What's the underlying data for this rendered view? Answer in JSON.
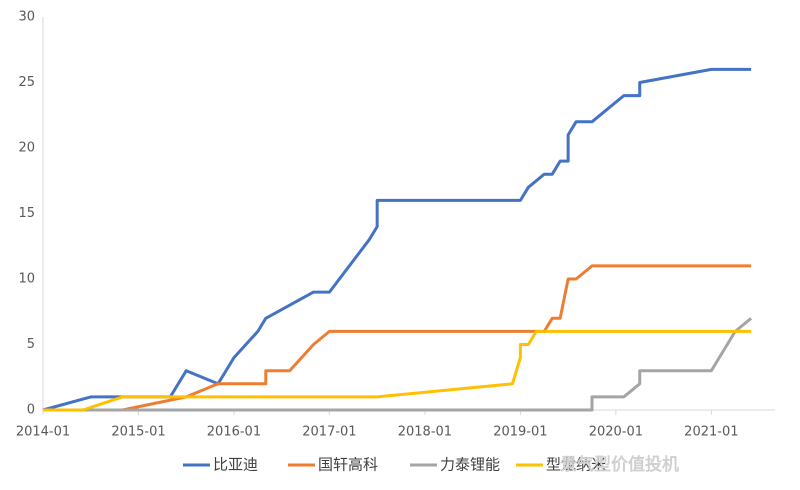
{
  "chart_data": {
    "type": "line",
    "xlim": [
      "2014-01",
      "2021-09"
    ],
    "xticks": [
      "2014-01",
      "2015-01",
      "2016-01",
      "2017-01",
      "2018-01",
      "2019-01",
      "2020-01",
      "2021-01"
    ],
    "ylim": [
      0,
      30
    ],
    "yticks": [
      0,
      5,
      10,
      15,
      20,
      25,
      30
    ],
    "watermark": "景气型价值投机",
    "series": [
      {
        "name": "比亚迪",
        "color": "#4472c4",
        "x": [
          "2014-01",
          "2014-07",
          "2015-05",
          "2015-07",
          "2015-11",
          "2016-01",
          "2016-04",
          "2016-05",
          "2016-11",
          "2017-01",
          "2017-06",
          "2017-07",
          "2017-07",
          "2019-01",
          "2019-02",
          "2019-04",
          "2019-05",
          "2019-06",
          "2019-07",
          "2019-07",
          "2019-08",
          "2019-10",
          "2019-12",
          "2020-02",
          "2020-04",
          "2020-04",
          "2021-01",
          "2021-06"
        ],
        "values": [
          0,
          1,
          1,
          3,
          2,
          4,
          6,
          7,
          9,
          9,
          13,
          14,
          16,
          16,
          17,
          18,
          18,
          19,
          19,
          21,
          22,
          22,
          23,
          24,
          24,
          25,
          26,
          26
        ]
      },
      {
        "name": "国轩高科",
        "color": "#ed7d31",
        "x": [
          "2014-01",
          "2014-11",
          "2015-07",
          "2015-11",
          "2016-05",
          "2016-05",
          "2016-08",
          "2016-11",
          "2017-01",
          "2019-04",
          "2019-05",
          "2019-06",
          "2019-07",
          "2019-08",
          "2019-10",
          "2021-06"
        ],
        "values": [
          0,
          0,
          1,
          2,
          2,
          3,
          3,
          5,
          6,
          6,
          7,
          7,
          10,
          10,
          11,
          11
        ]
      },
      {
        "name": "力泰锂能",
        "color": "#a5a5a5",
        "x": [
          "2014-01",
          "2019-10",
          "2019-10",
          "2020-02",
          "2020-04",
          "2020-04",
          "2021-01",
          "2021-03",
          "2021-04",
          "2021-06"
        ],
        "values": [
          0,
          0,
          1,
          1,
          2,
          3,
          3,
          5,
          6,
          7
        ]
      },
      {
        "name": "型龙纳米",
        "color": "#ffc000",
        "x": [
          "2014-01",
          "2014-06",
          "2014-11",
          "2017-07",
          "2018-12",
          "2019-01",
          "2019-01",
          "2019-02",
          "2019-03",
          "2021-06"
        ],
        "values": [
          0,
          0,
          1,
          1,
          2,
          4,
          5,
          5,
          6,
          6
        ]
      }
    ]
  }
}
